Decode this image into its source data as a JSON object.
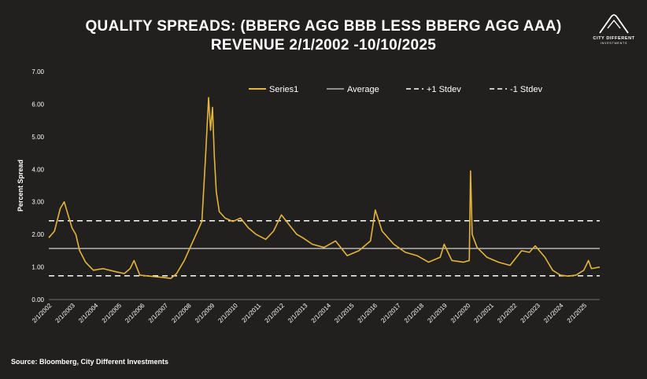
{
  "title_line1": "QUALITY SPREADS: (BBERG AGG BBB LESS BBERG AGG AAA)",
  "title_line2": "REVENUE 2/1/2002 -10/10/2025",
  "logo": {
    "name": "CITY DIFFERENT",
    "sub": "INVESTMENTS"
  },
  "source": "Source: Bloomberg, City Different Investments",
  "colors": {
    "background": "#221f1f",
    "series": "#e3b53b",
    "lines": "#ffffff"
  },
  "chart_data": {
    "type": "line",
    "title": "QUALITY SPREADS: (BBERG AGG BBB LESS BBERG AGG AAA) REVENUE 2/1/2002 -10/10/2025",
    "xlabel": "",
    "ylabel": "Percent Spread",
    "ylim": [
      0,
      7
    ],
    "yticks": [
      "0.00",
      "1.00",
      "2.00",
      "3.00",
      "4.00",
      "5.00",
      "6.00",
      "7.00"
    ],
    "xticks": [
      "2/1/2002",
      "2/1/2003",
      "2/1/2004",
      "2/1/2005",
      "2/1/2006",
      "2/1/2007",
      "2/1/2008",
      "2/1/2009",
      "2/1/2010",
      "2/1/2011",
      "2/1/2012",
      "2/1/2013",
      "2/1/2014",
      "2/1/2015",
      "2/1/2016",
      "2/1/2017",
      "2/1/2018",
      "2/1/2019",
      "2/1/2020",
      "2/1/2021",
      "2/1/2022",
      "2/1/2023",
      "2/1/2024",
      "2/1/2025"
    ],
    "xlim": [
      "2002-02-01",
      "2025-10-10"
    ],
    "grid": false,
    "legend_position": "top",
    "legend": [
      "Series1",
      "Average",
      "+1 Stdev",
      "-1 Stdev"
    ],
    "series": [
      {
        "name": "Series1",
        "x": [
          "2002-02-01",
          "2002-05-01",
          "2002-08-01",
          "2002-10-01",
          "2002-12-01",
          "2003-02-01",
          "2003-04-01",
          "2003-06-01",
          "2003-09-01",
          "2004-01-01",
          "2004-06-01",
          "2005-01-01",
          "2005-05-01",
          "2005-08-01",
          "2005-10-01",
          "2006-01-01",
          "2006-06-01",
          "2007-01-01",
          "2007-05-01",
          "2007-08-01",
          "2007-12-01",
          "2008-03-01",
          "2008-06-01",
          "2008-09-01",
          "2008-11-01",
          "2008-12-15",
          "2009-01-15",
          "2009-02-15",
          "2009-03-15",
          "2009-04-15",
          "2009-06-01",
          "2009-09-01",
          "2010-01-01",
          "2010-05-01",
          "2010-09-01",
          "2011-01-01",
          "2011-06-01",
          "2011-10-01",
          "2012-02-01",
          "2012-06-01",
          "2012-10-01",
          "2013-01-01",
          "2013-06-01",
          "2013-12-01",
          "2014-06-01",
          "2014-12-01",
          "2015-06-01",
          "2015-12-01",
          "2016-02-15",
          "2016-06-01",
          "2016-12-01",
          "2017-06-01",
          "2017-12-01",
          "2018-03-01",
          "2018-06-01",
          "2018-12-01",
          "2019-02-01",
          "2019-06-01",
          "2019-12-01",
          "2020-03-01",
          "2020-03-20",
          "2020-04-15",
          "2020-07-01",
          "2020-12-01",
          "2021-06-01",
          "2021-12-01",
          "2022-06-01",
          "2022-10-01",
          "2023-01-01",
          "2023-06-01",
          "2023-10-01",
          "2024-02-01",
          "2024-06-01",
          "2024-10-01",
          "2025-02-01",
          "2025-04-15",
          "2025-06-01",
          "2025-10-10"
        ],
        "values": [
          1.9,
          2.1,
          2.8,
          3.0,
          2.6,
          2.2,
          2.0,
          1.5,
          1.15,
          0.9,
          0.95,
          0.85,
          0.8,
          0.95,
          1.2,
          0.75,
          0.72,
          0.68,
          0.65,
          0.8,
          1.2,
          1.6,
          2.0,
          2.4,
          4.5,
          6.2,
          5.2,
          5.9,
          4.4,
          3.3,
          2.7,
          2.5,
          2.4,
          2.5,
          2.2,
          2.0,
          1.85,
          2.1,
          2.6,
          2.3,
          2.0,
          1.9,
          1.7,
          1.6,
          1.8,
          1.35,
          1.5,
          1.8,
          2.75,
          2.1,
          1.7,
          1.45,
          1.35,
          1.25,
          1.15,
          1.3,
          1.7,
          1.2,
          1.15,
          1.2,
          3.95,
          2.0,
          1.6,
          1.3,
          1.15,
          1.05,
          1.5,
          1.45,
          1.65,
          1.3,
          0.9,
          0.75,
          0.72,
          0.75,
          0.9,
          1.2,
          0.95,
          1.0
        ]
      }
    ],
    "average": 1.57,
    "plus_1_stdev": 2.42,
    "minus_1_stdev": 0.73
  }
}
